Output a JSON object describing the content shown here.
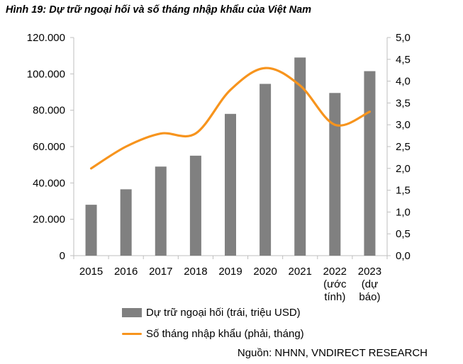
{
  "title": {
    "prefix": "Hình 19:",
    "text": "Dự trữ ngoại hối và số tháng nhập khẩu của Việt Nam"
  },
  "source": "Nguồn: NHNN, VNDIRECT RESEARCH",
  "legend": {
    "bar_label": "Dự trữ ngoại hối (trái, triệu USD)",
    "line_label": "Số tháng nhập khẩu (phải, tháng)"
  },
  "colors": {
    "bar": "#808080",
    "line": "#F7941D",
    "axis": "#bfbfbf"
  },
  "chart_data": {
    "type": "bar",
    "categories": [
      [
        "2015"
      ],
      [
        "2016"
      ],
      [
        "2017"
      ],
      [
        "2018"
      ],
      [
        "2019"
      ],
      [
        "2020"
      ],
      [
        "2021"
      ],
      [
        "2022",
        "(ước",
        "tính)"
      ],
      [
        "2023",
        "(dự",
        "báo)"
      ]
    ],
    "series": [
      {
        "name": "Dự trữ ngoại hối (trái, triệu USD)",
        "type": "bar",
        "axis": "left",
        "values": [
          28000,
          36500,
          49000,
          55000,
          78000,
          94500,
          109000,
          89500,
          101500
        ]
      },
      {
        "name": "Số tháng nhập khẩu (phải, tháng)",
        "type": "line",
        "axis": "right",
        "values": [
          2.0,
          2.5,
          2.8,
          2.8,
          3.8,
          4.3,
          3.9,
          3.0,
          3.3
        ]
      }
    ],
    "left_axis": {
      "min": 0,
      "max": 120000,
      "ticks": [
        "0",
        "20.000",
        "40.000",
        "60.000",
        "80.000",
        "100.000",
        "120.000"
      ]
    },
    "right_axis": {
      "min": 0,
      "max": 5,
      "ticks": [
        "0,0",
        "0,5",
        "1,0",
        "1,5",
        "2,0",
        "2,5",
        "3,0",
        "3,5",
        "4,0",
        "4,5",
        "5,0"
      ]
    },
    "grid": false,
    "legend_position": "bottom"
  }
}
